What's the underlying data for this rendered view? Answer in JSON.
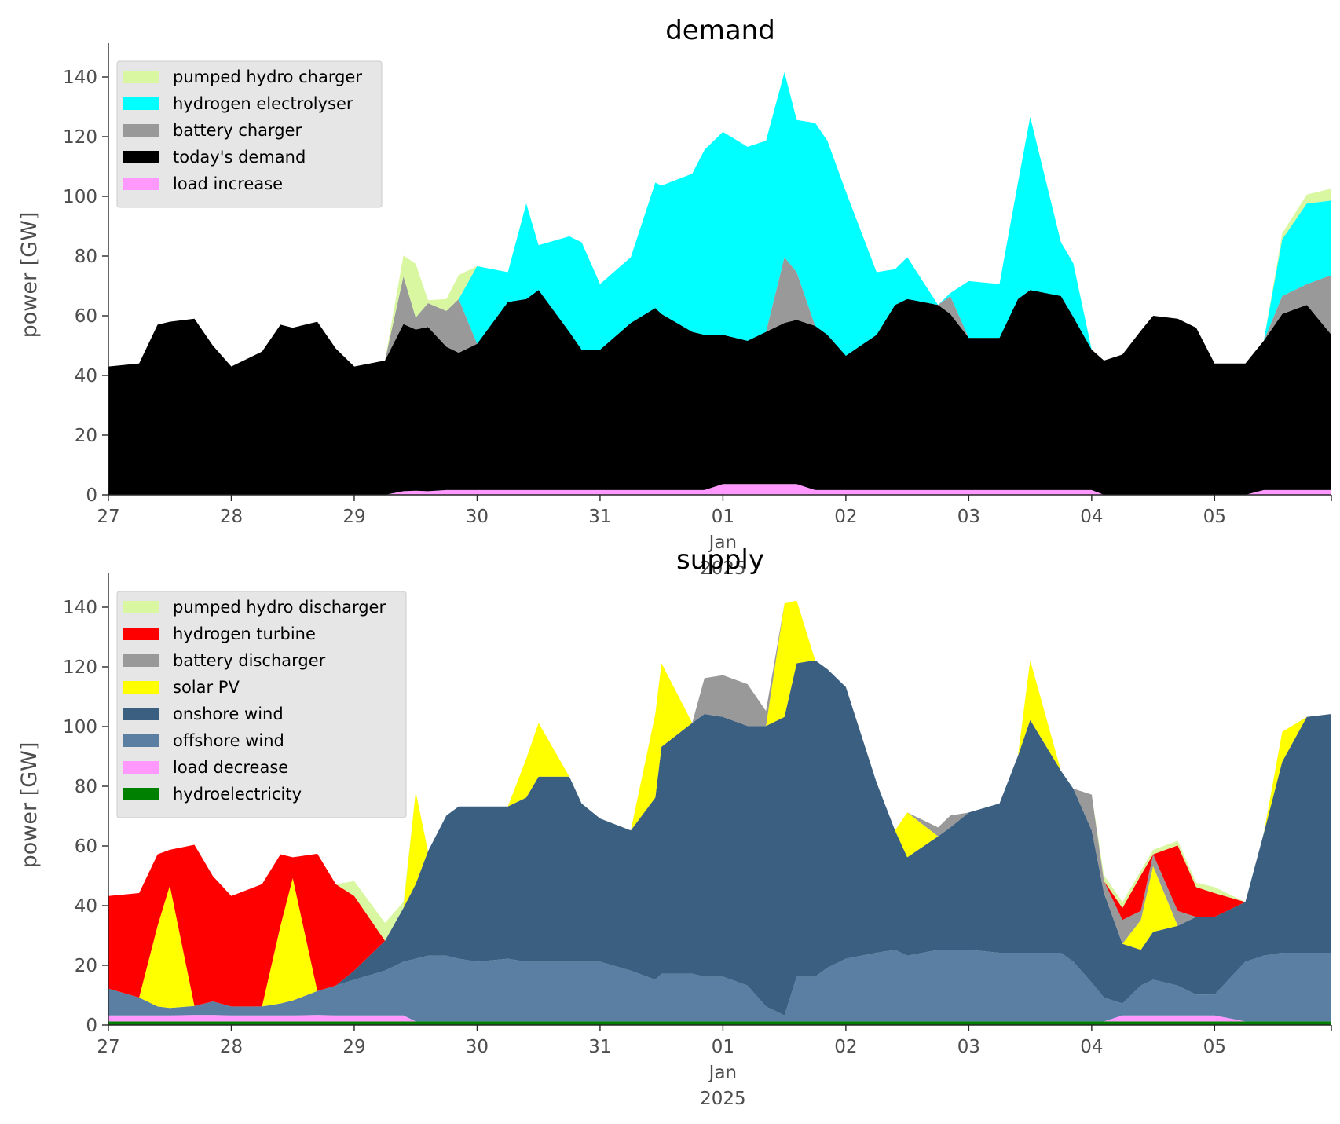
{
  "chart_data": [
    {
      "type": "area",
      "stacked": true,
      "title": "demand",
      "xlabel": "",
      "ylabel": "power [GW]",
      "ylim": [
        0,
        150
      ],
      "yticks": [
        0,
        20,
        40,
        60,
        80,
        100,
        120,
        140
      ],
      "x_unit": "day offset from 2024-12-27 00:00",
      "xticks": [
        "27",
        "28",
        "29",
        "30",
        "31",
        "01",
        "02",
        "03",
        "04",
        "05"
      ],
      "xtick_sublabel": [
        "Jan",
        "2025"
      ],
      "xlim_days": [
        0,
        9.95
      ],
      "grid": false,
      "legend": "top-left",
      "x": [
        0,
        0.25,
        0.4,
        0.5,
        0.7,
        0.85,
        1,
        1.25,
        1.4,
        1.5,
        1.7,
        1.85,
        2,
        2.25,
        2.4,
        2.5,
        2.6,
        2.75,
        2.85,
        3,
        3.25,
        3.4,
        3.5,
        3.75,
        3.85,
        4,
        4.25,
        4.45,
        4.5,
        4.75,
        4.85,
        5,
        5.2,
        5.35,
        5.5,
        5.6,
        5.75,
        5.85,
        6,
        6.25,
        6.4,
        6.5,
        6.75,
        6.85,
        7,
        7.25,
        7.4,
        7.5,
        7.75,
        7.85,
        8,
        8.1,
        8.25,
        8.4,
        8.5,
        8.7,
        8.85,
        9,
        9.25,
        9.4,
        9.55,
        9.75,
        9.95
      ],
      "series": [
        {
          "name": "load increase",
          "color": "#ff99ff",
          "values": [
            0,
            0,
            0,
            0,
            0,
            0,
            0,
            0,
            0,
            0,
            0,
            0,
            0,
            0,
            1.2,
            1.4,
            1.2,
            1.6,
            1.6,
            1.6,
            1.6,
            1.6,
            1.6,
            1.6,
            1.6,
            1.6,
            1.6,
            1.6,
            1.6,
            1.6,
            1.6,
            3.6,
            3.6,
            3.6,
            3.6,
            3.6,
            1.6,
            1.6,
            1.6,
            1.6,
            1.6,
            1.6,
            1.6,
            1.6,
            1.6,
            1.6,
            1.6,
            1.6,
            1.6,
            1.6,
            1.6,
            0,
            0,
            0,
            0,
            0,
            0,
            0,
            0,
            1.6,
            1.6,
            1.6,
            1.6
          ]
        },
        {
          "name": "today's demand",
          "color": "#000000",
          "values": [
            43,
            44,
            57,
            58,
            59,
            50,
            43,
            48,
            57,
            56,
            58,
            49,
            43,
            45,
            56,
            54,
            55,
            48,
            46,
            49,
            63,
            64,
            67,
            53,
            47,
            47,
            56,
            61,
            59,
            53,
            52,
            50,
            48,
            51,
            54,
            55,
            55,
            52,
            45,
            52,
            62,
            64,
            62,
            59,
            51,
            51,
            64,
            67,
            65,
            58,
            47,
            45,
            47,
            55,
            60,
            59,
            56,
            44,
            44,
            50,
            59,
            62,
            52
          ]
        },
        {
          "name": "battery charger",
          "color": "#999999",
          "values": [
            0,
            0,
            0,
            0,
            0,
            0,
            0,
            0,
            0,
            0,
            0,
            0,
            0,
            0,
            16,
            4,
            8,
            12,
            18,
            0,
            0,
            0,
            0,
            0,
            0,
            0,
            0,
            0,
            0,
            0,
            0,
            0,
            0,
            0,
            22,
            16,
            0,
            0,
            0,
            0,
            0,
            0,
            0,
            6,
            0,
            0,
            0,
            0,
            0,
            0,
            0,
            0,
            0,
            0,
            0,
            0,
            0,
            0,
            0,
            0,
            6,
            7,
            20
          ]
        },
        {
          "name": "hydrogen electrolyser",
          "color": "#00ffff",
          "values": [
            0,
            0,
            0,
            0,
            0,
            0,
            0,
            0,
            0,
            0,
            0,
            0,
            0,
            0,
            0,
            0,
            0,
            0,
            0,
            26,
            10,
            32,
            15,
            32,
            36,
            22,
            22,
            42,
            43,
            53,
            62,
            68,
            65,
            64,
            62,
            51,
            68,
            65,
            55,
            21,
            12,
            14,
            0,
            1,
            19,
            18,
            39,
            58,
            18,
            18,
            0,
            0,
            0,
            0,
            0,
            0,
            0,
            0,
            0,
            0,
            19,
            27,
            25
          ]
        },
        {
          "name": "pumped hydro charger",
          "color": "#d9f7a1",
          "values": [
            0,
            0,
            0,
            0,
            0,
            0,
            0,
            0,
            0,
            0,
            0,
            0,
            0,
            0,
            7,
            18,
            1,
            4,
            8,
            0,
            0,
            0,
            0,
            0,
            0,
            0,
            0,
            0,
            0,
            0,
            0,
            0,
            0,
            0,
            0,
            0,
            0,
            0,
            0,
            0,
            0,
            0,
            0,
            0,
            0,
            0,
            0,
            0,
            0,
            0,
            0,
            0,
            0,
            0,
            0,
            0,
            0,
            0,
            0,
            0,
            2,
            3,
            4
          ]
        }
      ],
      "legend_entries": [
        {
          "label": "pumped hydro charger",
          "color": "#d9f7a1"
        },
        {
          "label": "hydrogen electrolyser",
          "color": "#00ffff"
        },
        {
          "label": "battery charger",
          "color": "#999999"
        },
        {
          "label": "today's demand",
          "color": "#000000"
        },
        {
          "label": "load increase",
          "color": "#ff99ff"
        }
      ]
    },
    {
      "type": "area",
      "stacked": true,
      "title": "supply",
      "xlabel": "",
      "ylabel": "power [GW]",
      "ylim": [
        0,
        150
      ],
      "yticks": [
        0,
        20,
        40,
        60,
        80,
        100,
        120,
        140
      ],
      "x_unit": "day offset from 2024-12-27 00:00",
      "xticks": [
        "27",
        "28",
        "29",
        "30",
        "31",
        "01",
        "02",
        "03",
        "04",
        "05"
      ],
      "xtick_sublabel": [
        "Jan",
        "2025"
      ],
      "xlim_days": [
        0,
        9.95
      ],
      "grid": false,
      "legend": "top-left",
      "x": [
        0,
        0.25,
        0.4,
        0.5,
        0.7,
        0.85,
        1,
        1.25,
        1.4,
        1.5,
        1.7,
        1.85,
        2,
        2.25,
        2.4,
        2.5,
        2.6,
        2.75,
        2.85,
        3,
        3.25,
        3.4,
        3.5,
        3.75,
        3.85,
        4,
        4.25,
        4.45,
        4.5,
        4.75,
        4.85,
        5,
        5.2,
        5.35,
        5.5,
        5.6,
        5.75,
        5.85,
        6,
        6.25,
        6.4,
        6.5,
        6.75,
        6.85,
        7,
        7.25,
        7.4,
        7.5,
        7.75,
        7.85,
        8,
        8.1,
        8.25,
        8.4,
        8.5,
        8.7,
        8.85,
        9,
        9.25,
        9.4,
        9.55,
        9.75,
        9.95
      ],
      "series": [
        {
          "name": "hydroelectricity",
          "color": "#008000",
          "values": [
            1.2,
            1.2,
            1.2,
            1.2,
            1.2,
            1.2,
            1.2,
            1.2,
            1.2,
            1.2,
            1.2,
            1.2,
            1.2,
            1.2,
            1.2,
            1.2,
            1.2,
            1.2,
            1.2,
            1.2,
            1.2,
            1.2,
            1.2,
            1.2,
            1.2,
            1.2,
            1.2,
            1.2,
            1.2,
            1.2,
            1.2,
            1.2,
            1.2,
            1.2,
            1.2,
            1.2,
            1.2,
            1.2,
            1.2,
            1.2,
            1.2,
            1.2,
            1.2,
            1.2,
            1.2,
            1.2,
            1.2,
            1.2,
            1.2,
            1.2,
            1.2,
            1.2,
            1.2,
            1.2,
            1.2,
            1.2,
            1.2,
            1.2,
            1.2,
            1.2,
            1.2,
            1.2,
            1.2
          ]
        },
        {
          "name": "load decrease",
          "color": "#ff99ff",
          "values": [
            2,
            2,
            2,
            2,
            2.2,
            2.2,
            2,
            2,
            2,
            2,
            2.2,
            2,
            2,
            2,
            2,
            0,
            0,
            0,
            0,
            0,
            0,
            0,
            0,
            0,
            0,
            0,
            0,
            0,
            0,
            0,
            0,
            0,
            0,
            0,
            0,
            0,
            0,
            0,
            0,
            0,
            0,
            0,
            0,
            0,
            0,
            0,
            0,
            0,
            0,
            0,
            0,
            0,
            2,
            2,
            2,
            2,
            2,
            2,
            0,
            0,
            0,
            0,
            0
          ]
        },
        {
          "name": "offshore wind",
          "color": "#5b7fa3",
          "values": [
            9,
            6,
            3,
            2.5,
            3,
            4.5,
            3,
            3,
            4,
            5,
            8,
            10,
            12,
            15,
            18,
            21,
            22,
            22,
            21,
            20,
            21,
            20,
            20,
            20,
            20,
            20,
            17,
            14,
            16,
            16,
            15,
            15,
            12,
            5,
            2,
            15,
            15,
            18,
            21,
            23,
            24,
            22,
            24,
            24,
            24,
            23,
            23,
            23,
            23,
            20,
            13,
            8,
            4,
            10,
            12,
            10,
            7,
            7,
            20,
            22,
            23,
            23,
            23
          ]
        },
        {
          "name": "onshore wind",
          "color": "#3b5f80",
          "values": [
            0,
            0,
            0,
            0,
            0,
            0,
            0,
            0,
            0,
            0,
            0,
            0,
            3,
            10,
            18,
            25,
            35,
            47,
            51,
            52,
            51,
            55,
            62,
            62,
            53,
            48,
            47,
            61,
            76,
            84,
            88,
            87,
            87,
            94,
            100,
            105,
            106,
            100,
            91,
            57,
            40,
            33,
            38,
            41,
            46,
            50,
            66,
            78,
            61,
            58,
            51,
            35,
            20,
            12,
            16,
            20,
            26,
            26,
            20,
            41,
            64,
            79,
            80
          ]
        },
        {
          "name": "solar PV",
          "color": "#ffff00",
          "values": [
            0,
            0,
            27,
            41,
            0,
            0,
            0,
            0,
            26,
            41,
            0,
            0,
            0,
            0,
            0,
            31,
            0,
            0,
            0,
            0,
            0,
            13,
            18,
            0,
            0,
            0,
            0,
            28,
            28,
            0,
            0,
            0,
            0,
            0,
            38,
            21,
            0,
            0,
            0,
            0,
            0,
            15,
            0,
            0,
            0,
            0,
            0,
            20,
            0,
            0,
            0,
            0,
            0,
            10,
            22,
            0,
            0,
            0,
            0,
            0,
            10,
            0,
            0
          ]
        },
        {
          "name": "battery discharger",
          "color": "#999999",
          "values": [
            0,
            0,
            0,
            0,
            0,
            0,
            0,
            0,
            0,
            0,
            0,
            0,
            0,
            0,
            0,
            0,
            0,
            0,
            0,
            0,
            0,
            0,
            0,
            0,
            0,
            0,
            0,
            0,
            0,
            0,
            12,
            14,
            14,
            5,
            0,
            0,
            0,
            0,
            0,
            0,
            0,
            0,
            3,
            4,
            0,
            0,
            0,
            0,
            0,
            0,
            12,
            4,
            8,
            3,
            4,
            5,
            0,
            0,
            0,
            0,
            0,
            0,
            0
          ]
        },
        {
          "name": "hydrogen turbine",
          "color": "#ff0000",
          "values": [
            31,
            35,
            24,
            12,
            54,
            42,
            37,
            41,
            24,
            7,
            46,
            34,
            25,
            0,
            0,
            0,
            0,
            0,
            0,
            0,
            0,
            0,
            0,
            0,
            0,
            0,
            0,
            0,
            0,
            0,
            0,
            0,
            0,
            0,
            0,
            0,
            0,
            0,
            0,
            0,
            0,
            0,
            0,
            0,
            0,
            0,
            0,
            0,
            0,
            0,
            0,
            0,
            4,
            12,
            0,
            22,
            10,
            8,
            0,
            0,
            0,
            0,
            0
          ]
        },
        {
          "name": "pumped hydro discharger",
          "color": "#d9f7a1",
          "values": [
            0,
            0,
            0,
            0,
            0,
            0,
            0,
            0,
            0,
            0,
            0,
            0,
            5,
            6,
            2,
            0,
            0,
            0,
            0,
            0,
            0,
            0,
            0,
            0,
            0,
            0,
            0,
            0,
            0,
            0,
            0,
            0,
            0,
            0,
            0,
            0,
            0,
            0,
            0,
            0,
            0,
            0,
            0,
            0,
            0,
            0,
            0,
            0,
            0,
            0,
            0,
            2,
            2,
            1.5,
            1.5,
            1.5,
            1.5,
            2,
            0,
            0,
            0,
            0,
            0
          ]
        }
      ],
      "legend_entries": [
        {
          "label": "pumped hydro discharger",
          "color": "#d9f7a1"
        },
        {
          "label": "hydrogen turbine",
          "color": "#ff0000"
        },
        {
          "label": "battery discharger",
          "color": "#999999"
        },
        {
          "label": "solar PV",
          "color": "#ffff00"
        },
        {
          "label": "onshore wind",
          "color": "#3b5f80"
        },
        {
          "label": "offshore wind",
          "color": "#5b7fa3"
        },
        {
          "label": "load decrease",
          "color": "#ff99ff"
        },
        {
          "label": "hydroelectricity",
          "color": "#008000"
        }
      ]
    }
  ]
}
